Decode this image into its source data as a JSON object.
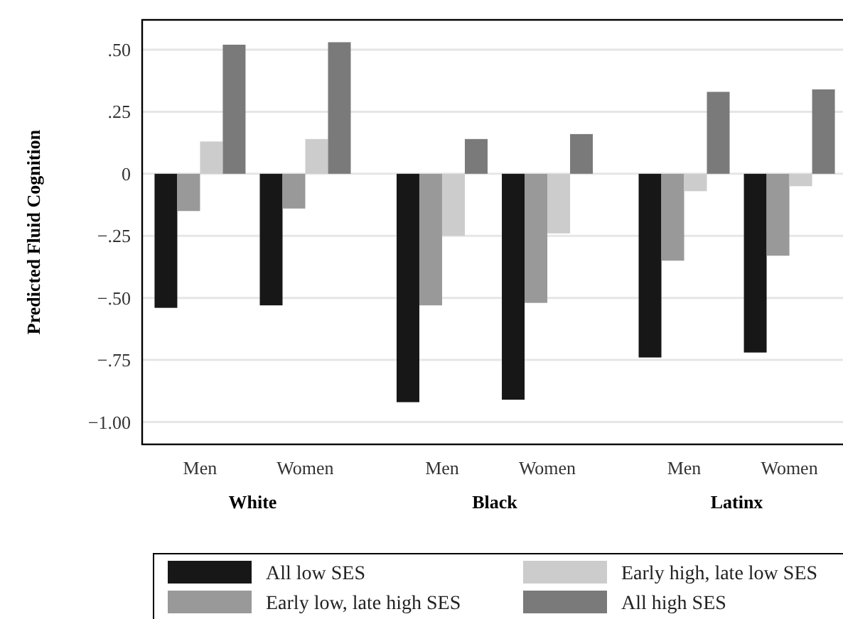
{
  "chart_data": {
    "type": "bar",
    "ylabel": "Predicted Fluid Cognition",
    "categories": [
      "Men",
      "Women",
      "Men",
      "Women",
      "Men",
      "Women"
    ],
    "annotations": [
      "White",
      "Black",
      "Latinx"
    ],
    "series": [
      {
        "name": "All low SES",
        "color": "#171717",
        "values": [
          -0.54,
          -0.53,
          -0.92,
          -0.91,
          -0.74,
          -0.72
        ]
      },
      {
        "name": "Early low, late high SES",
        "color": "#999999",
        "values": [
          -0.15,
          -0.14,
          -0.53,
          -0.52,
          -0.35,
          -0.33
        ]
      },
      {
        "name": "Early high, late low SES",
        "color": "#cccccc",
        "values": [
          0.13,
          0.14,
          -0.25,
          -0.24,
          -0.07,
          -0.05
        ]
      },
      {
        "name": "All high SES",
        "color": "#7a7a7a",
        "values": [
          0.52,
          0.53,
          0.14,
          0.16,
          0.33,
          0.34
        ]
      }
    ],
    "ylim": [
      -1.09,
      0.62
    ],
    "yticks": [
      {
        "value": 0.5,
        "label": ".50"
      },
      {
        "value": 0.25,
        "label": ".25"
      },
      0,
      {
        "value": -0.25,
        "label": "−.25"
      },
      {
        "value": -0.5,
        "label": "−.50"
      },
      {
        "value": -0.75,
        "label": "−.75"
      },
      {
        "value": -1,
        "label": "−1.00"
      }
    ],
    "grid": true,
    "legend": "bottom"
  }
}
